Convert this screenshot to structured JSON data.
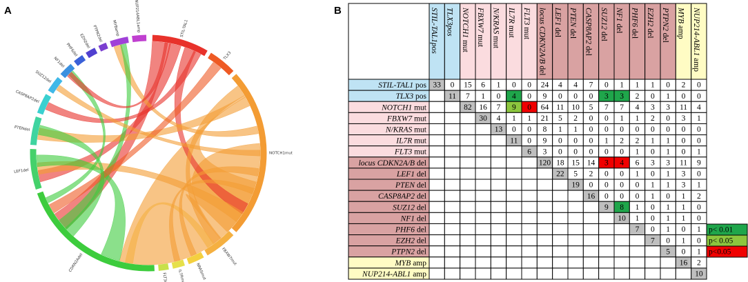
{
  "panel_a": "A",
  "panel_b": "B",
  "chord": {
    "labels": [
      "STIL-TAL1",
      "TLX3",
      "NOTCH1mut",
      "FBXW7mut",
      "NRASmut",
      "IL7Rmut",
      "FLT3mut",
      "CDKN2Adel",
      "LEF1del",
      "PTENdel",
      "CASP8AP2del",
      "SUZ12del",
      "NF1del",
      "PHF6del",
      "EZH2del",
      "PTPN2del",
      "MYBamp",
      "NUP214ABL1amp"
    ]
  },
  "table": {
    "columns": [
      {
        "gene": "STIL-TAL1pos",
        "color": "#bfe3f4"
      },
      {
        "gene": "TLX3pos",
        "color": "#bfe3f4"
      },
      {
        "gene": "NOTCH1",
        "suffix": "mut",
        "color": "#fbdcdf"
      },
      {
        "gene": "FBXW7",
        "suffix": "mut",
        "color": "#fbdcdf"
      },
      {
        "gene": "N/KRAS",
        "suffix": "mut",
        "color": "#fbdcdf"
      },
      {
        "gene": "IL7R",
        "suffix": "mut",
        "color": "#fbdcdf"
      },
      {
        "gene": "FLT3",
        "suffix": "mut",
        "color": "#fbdcdf"
      },
      {
        "gene": "locus CDKN2A/B",
        "suffix": "del",
        "color": "#d9a2a2"
      },
      {
        "gene": "LEF1",
        "suffix": "del",
        "color": "#d9a2a2"
      },
      {
        "gene": "PTEN",
        "suffix": "del",
        "color": "#d9a2a2"
      },
      {
        "gene": "CASP8AP2",
        "suffix": "del",
        "color": "#d9a2a2"
      },
      {
        "gene": "SUZ12",
        "suffix": "del",
        "color": "#d9a2a2"
      },
      {
        "gene": "NF1",
        "suffix": "del",
        "color": "#d9a2a2"
      },
      {
        "gene": "PHF6",
        "suffix": "del",
        "color": "#d9a2a2"
      },
      {
        "gene": "EZH2",
        "suffix": "del",
        "color": "#d9a2a2"
      },
      {
        "gene": "PTPN2",
        "suffix": "del",
        "color": "#d9a2a2"
      },
      {
        "gene": "MYB",
        "suffix": "amp",
        "color": "#fffcc4"
      },
      {
        "gene": "NUP214-ABL1",
        "suffix": "amp",
        "color": "#fffcc4"
      }
    ],
    "rows": [
      {
        "gene": "STIL-TAL1",
        "suffix": "pos",
        "cells": [
          33,
          0,
          15,
          6,
          1,
          0,
          0,
          24,
          4,
          4,
          7,
          0,
          1,
          1,
          1,
          0,
          2,
          0
        ]
      },
      {
        "gene": "TLX3",
        "suffix": "pos",
        "cells": [
          null,
          11,
          7,
          1,
          0,
          {
            "value": 4,
            "fill": "#1fa64b"
          },
          0,
          9,
          0,
          0,
          0,
          {
            "value": 3,
            "fill": "#1fa64b"
          },
          {
            "value": 3,
            "fill": "#1fa64b"
          },
          2,
          0,
          1,
          0,
          0
        ]
      },
      {
        "gene": "NOTCH1",
        "suffix": "mut",
        "cells": [
          null,
          null,
          82,
          16,
          7,
          {
            "value": 9,
            "fill": "#8cc63e"
          },
          {
            "value": 0,
            "fill": "#f00000"
          },
          64,
          11,
          10,
          5,
          7,
          7,
          4,
          3,
          3,
          11,
          4
        ]
      },
      {
        "gene": "FBXW7",
        "suffix": "mut",
        "cells": [
          null,
          null,
          null,
          30,
          4,
          1,
          1,
          21,
          5,
          2,
          0,
          0,
          1,
          1,
          2,
          0,
          3,
          1
        ]
      },
      {
        "gene": "N/KRAS",
        "suffix": "mut",
        "cells": [
          null,
          null,
          null,
          null,
          13,
          0,
          0,
          8,
          1,
          1,
          0,
          0,
          0,
          0,
          0,
          0,
          0,
          0
        ]
      },
      {
        "gene": "IL7R",
        "suffix": "mut",
        "cells": [
          null,
          null,
          null,
          null,
          null,
          11,
          0,
          9,
          0,
          0,
          0,
          1,
          2,
          2,
          1,
          1,
          0,
          0
        ]
      },
      {
        "gene": "FLT3",
        "suffix": "mut",
        "cells": [
          null,
          null,
          null,
          null,
          null,
          null,
          6,
          3,
          0,
          0,
          0,
          0,
          0,
          1,
          0,
          1,
          0,
          1
        ]
      },
      {
        "gene": "locus CDKN2A/B",
        "suffix": "del",
        "cells": [
          null,
          null,
          null,
          null,
          null,
          null,
          null,
          120,
          18,
          15,
          14,
          {
            "value": 3,
            "fill": "#f00000"
          },
          {
            "value": 4,
            "fill": "#f00000"
          },
          6,
          3,
          3,
          11,
          9
        ]
      },
      {
        "gene": "LEF1",
        "suffix": "del",
        "cells": [
          null,
          null,
          null,
          null,
          null,
          null,
          null,
          null,
          22,
          5,
          2,
          0,
          0,
          1,
          0,
          1,
          3,
          0
        ]
      },
      {
        "gene": "PTEN",
        "suffix": "del",
        "cells": [
          null,
          null,
          null,
          null,
          null,
          null,
          null,
          null,
          null,
          19,
          0,
          0,
          0,
          0,
          1,
          1,
          3,
          1
        ]
      },
      {
        "gene": "CASP8AP2",
        "suffix": "del",
        "cells": [
          null,
          null,
          null,
          null,
          null,
          null,
          null,
          null,
          null,
          null,
          16,
          0,
          0,
          0,
          1,
          0,
          1,
          2
        ]
      },
      {
        "gene": "SUZ12",
        "suffix": "del",
        "cells": [
          null,
          null,
          null,
          null,
          null,
          null,
          null,
          null,
          null,
          null,
          null,
          9,
          {
            "value": 8,
            "fill": "#1fa64b"
          },
          1,
          0,
          1,
          1,
          0
        ]
      },
      {
        "gene": "NF1",
        "suffix": "del",
        "cells": [
          null,
          null,
          null,
          null,
          null,
          null,
          null,
          null,
          null,
          null,
          null,
          null,
          10,
          1,
          0,
          1,
          1,
          0
        ]
      },
      {
        "gene": "PHF6",
        "suffix": "del",
        "cells": [
          null,
          null,
          null,
          null,
          null,
          null,
          null,
          null,
          null,
          null,
          null,
          null,
          null,
          7,
          0,
          1,
          0,
          1
        ]
      },
      {
        "gene": "EZH2",
        "suffix": "del",
        "cells": [
          null,
          null,
          null,
          null,
          null,
          null,
          null,
          null,
          null,
          null,
          null,
          null,
          null,
          null,
          7,
          0,
          1,
          0
        ]
      },
      {
        "gene": "PTPN2",
        "suffix": "del",
        "cells": [
          null,
          null,
          null,
          null,
          null,
          null,
          null,
          null,
          null,
          null,
          null,
          null,
          null,
          null,
          null,
          5,
          0,
          1
        ]
      },
      {
        "gene": "MYB",
        "suffix": "amp",
        "cells": [
          null,
          null,
          null,
          null,
          null,
          null,
          null,
          null,
          null,
          null,
          null,
          null,
          null,
          null,
          null,
          null,
          16,
          2
        ]
      },
      {
        "gene": "NUP214-ABL1",
        "suffix": "amp",
        "cells": [
          null,
          null,
          null,
          null,
          null,
          null,
          null,
          null,
          null,
          null,
          null,
          null,
          null,
          null,
          null,
          null,
          null,
          10
        ]
      }
    ]
  },
  "legend": [
    {
      "label": "p< 0.01",
      "color": "#1fa64b"
    },
    {
      "label": "p< 0.05",
      "color": "#8cc63e"
    },
    {
      "label": "p<0.05",
      "color": "#f00000"
    }
  ]
}
